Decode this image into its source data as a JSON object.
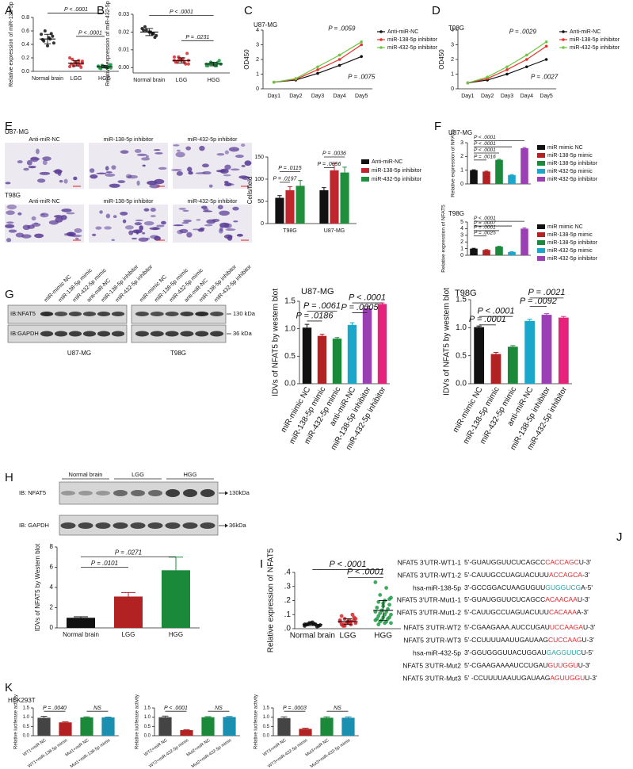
{
  "panel_labels": [
    "A",
    "B",
    "C",
    "D",
    "E",
    "F",
    "G",
    "H",
    "I",
    "J",
    "K"
  ],
  "E_images": {
    "rows": [
      "U87-MG",
      "T98G"
    ],
    "columns": [
      "Anti-miR-NC",
      "miR-138-5p inhibitor",
      "miR-432-5p inhibitor"
    ]
  },
  "G_blot": {
    "lanes": [
      "miR-mimic NC",
      "miR-138-5p mimic",
      "miR-432-5p mimic",
      "anti-miR-NC",
      "miR-138-5p inhibitor",
      "miR-432-5p inhibitor"
    ],
    "bands": [
      "IB:NFAT5",
      "IB:GAPDH"
    ],
    "sizes": [
      "130 kDa",
      "36 kDa"
    ],
    "cell_lines": [
      "U87-MG",
      "T98G"
    ]
  },
  "H_blot": {
    "groups": [
      "Normal brain",
      "LGG",
      "HGG"
    ],
    "bands": [
      "IB: NFAT5",
      "IB: GAPDH"
    ],
    "sizes": [
      "130kDa",
      "36kDa"
    ]
  },
  "K_title": "HEK293T",
  "J_sequences": [
    {
      "name": "NFAT5 3'UTR-WT1-1",
      "pre": "5'-GUAUGGUUCUCAGCC",
      "seed": "CACCAGC",
      "post": "U-3'",
      "seed_color": "#e0262b"
    },
    {
      "name": "NFAT5 3'UTR-WT1-2",
      "pre": "5'-CAUUGCCUAGUACUUU",
      "seed": "ACCAGCA",
      "post": "-3'",
      "seed_color": "#e0262b"
    },
    {
      "name": "hsa-miR-138-5p",
      "pre": "3'-GCCGGACUAAGUGUU",
      "seed": "GUGGUCG",
      "post": "A-5'",
      "seed_color": "#1fa3a8"
    },
    {
      "name": "NFAT5 3'UTR-Mut1-1",
      "pre": "5'-GUAUGGUUCUCAGCC",
      "seed": "ACAACAA",
      "post": "U-3'",
      "seed_color": "#e0262b"
    },
    {
      "name": "NFAT5 3'UTR-Mut1-2",
      "pre": "5'-CAUUGCCUAGUACUUU",
      "seed": "CACAAA",
      "post": "A-3'",
      "seed_color": "#e0262b"
    },
    {
      "name": "NFAT5 3'UTR-WT2",
      "pre": "5'-CGAAGAAA.AUCCUGAU",
      "seed": "UCCAAGA",
      "post": "U-3'",
      "seed_color": "#e0262b"
    },
    {
      "name": "NFAT5 3'UTR-WT3",
      "pre": "5'-CCUUUUAAUUGAUAAG",
      "seed": "CUCCAAG",
      "post": "U-3'",
      "seed_color": "#e0262b"
    },
    {
      "name": "hsa-miR-432-5p",
      "pre": "3'-GGUGGGUUACUGGAU",
      "seed": "GAGGUUC",
      "post": "U-5'",
      "seed_color": "#1fa3a8"
    },
    {
      "name": "NFAT5 3'UTR-Mut2",
      "pre": "5'-CGAAGAAAAUCCUGAU",
      "seed": "GUUGGU",
      "post": "U-3'",
      "seed_color": "#e0262b"
    },
    {
      "name": "NFAT5 3'UTR-Mut3",
      "pre": "5' -CCUUUUAAUUGAUAAG",
      "seed": "AGUUGGU",
      "post": "U-3'",
      "seed_color": "#e0262b"
    }
  ],
  "chart_data": [
    {
      "type": "scatter",
      "ylabel": "Relative expression of miR-138-5p",
      "categories": [
        "Normal brain",
        "LGG",
        "HGG"
      ],
      "colors": [
        "#111111",
        "#d7262a",
        "#1e9b45"
      ],
      "points": [
        [
          0.55,
          0.48,
          0.6,
          0.42,
          0.5,
          0.45,
          0.52,
          0.38,
          0.47,
          0.56
        ],
        [
          0.2,
          0.12,
          0.08,
          0.15,
          0.1,
          0.18,
          0.06,
          0.13,
          0.11,
          0.09,
          0.14,
          0.07,
          0.16,
          0.1,
          0.12
        ],
        [
          0.08,
          0.05,
          0.07,
          0.1,
          0.06,
          0.04,
          0.09,
          0.07,
          0.05,
          0.06,
          0.08,
          0.07,
          0.06,
          0.09,
          0.05
        ]
      ],
      "means": [
        0.48,
        0.12,
        0.07
      ],
      "sd": [
        0.07,
        0.04,
        0.02
      ],
      "ylim": [
        0,
        0.8
      ],
      "yticks": [
        {
          "value": 0,
          "label": "0.0"
        },
        0.2,
        0.4,
        0.6,
        0.8
      ],
      "annotations": [
        "P < .0001",
        "P < .0001"
      ]
    },
    {
      "type": "scatter",
      "ylabel": "Relative expression of miR-432-5p",
      "categories": [
        "Normal brain",
        "LGG",
        "HGG"
      ],
      "colors": [
        "#111111",
        "#d7262a",
        "#1e9b45"
      ],
      "points": [
        [
          0.022,
          0.019,
          0.021,
          0.018,
          0.02,
          0.023,
          0.017,
          0.02,
          0.021,
          0.019
        ],
        [
          0.006,
          0.003,
          0.004,
          0.002,
          0.005,
          0.003,
          0.008,
          0.004,
          0.003,
          0.002,
          0.005,
          0.004,
          0.003,
          0.006,
          0.004
        ],
        [
          0.002,
          0.001,
          0.003,
          0.002,
          0.001,
          0.002,
          0.004,
          0.002,
          0.001,
          0.003,
          0.002,
          0.001,
          0.002,
          0.003,
          0.002
        ]
      ],
      "means": [
        0.02,
        0.004,
        0.002
      ],
      "sd": [
        0.002,
        0.0015,
        0.001
      ],
      "ylim": [
        -0.003,
        0.03
      ],
      "yticks": [
        {
          "value": 0,
          "label": "0.00"
        },
        {
          "value": 0.01,
          "label": "0.01"
        },
        {
          "value": 0.02,
          "label": "0.02"
        },
        {
          "value": 0.03,
          "label": "0.03"
        }
      ],
      "annotations": [
        "P < .0001",
        "P = .0231"
      ]
    },
    {
      "type": "line",
      "title": "U87-MG",
      "ylabel": "OD450",
      "categories": [
        "Day1",
        "Day2",
        "Day3",
        "Day4",
        "Day5"
      ],
      "series": [
        {
          "name": "Anti-miR-NC",
          "color": "#111111",
          "values": [
            0.45,
            0.6,
            1.05,
            1.6,
            2.2
          ]
        },
        {
          "name": "miR-138-5p inhibitor",
          "color": "#e8322b",
          "values": [
            0.45,
            0.65,
            1.3,
            2.0,
            3.0
          ]
        },
        {
          "name": "miR-432-5p inhibitor",
          "color": "#6ec642",
          "values": [
            0.45,
            0.7,
            1.5,
            2.3,
            3.2
          ]
        }
      ],
      "ylim": [
        0,
        4
      ],
      "yticks": [
        0,
        1,
        2,
        3,
        4
      ],
      "annotations": [
        "P = .0059",
        "P = .0075"
      ],
      "annotation_colors": [
        "#e8322b",
        "#111111"
      ],
      "legend": "right"
    },
    {
      "type": "line",
      "title": "T98G",
      "ylabel": "OD450",
      "categories": [
        "Day1",
        "Day2",
        "Day3",
        "Day4",
        "Day5"
      ],
      "series": [
        {
          "name": "Anti-miR-NC",
          "color": "#111111",
          "values": [
            0.4,
            0.6,
            1.0,
            1.5,
            2.0
          ]
        },
        {
          "name": "miR-138-5p inhibitor",
          "color": "#e8322b",
          "values": [
            0.4,
            0.7,
            1.3,
            2.0,
            2.9
          ]
        },
        {
          "name": "miR-432-5p inhibitor",
          "color": "#6ec642",
          "values": [
            0.4,
            0.8,
            1.5,
            2.3,
            3.2
          ]
        }
      ],
      "ylim": [
        0,
        4
      ],
      "yticks": [
        0,
        1,
        2,
        3,
        4
      ],
      "annotations": [
        "P = .0029",
        "P = .0027"
      ],
      "annotation_colors": [
        "#e8322b",
        "#111111"
      ],
      "legend": "right"
    },
    {
      "type": "bar",
      "ylabel": "Cells/field",
      "categories": [
        "T98G",
        "U87-MG"
      ],
      "series": [
        {
          "name": "Anti-miR-NC",
          "color": "#111111",
          "values": [
            58,
            75
          ],
          "errors": [
            5,
            6
          ]
        },
        {
          "name": "miR-138-5p inhibitor",
          "color": "#c0262d",
          "values": [
            75,
            120
          ],
          "errors": [
            8,
            15
          ]
        },
        {
          "name": "miR-432-5p inhibitor",
          "color": "#1f8f3c",
          "values": [
            85,
            115
          ],
          "errors": [
            12,
            12
          ]
        }
      ],
      "ylim": [
        0,
        150
      ],
      "yticks": [
        0,
        50,
        100,
        150
      ],
      "annotations": [
        "P = .0115",
        "P = .0197",
        "P = .0036",
        "P = .0056"
      ],
      "legend": "right"
    },
    {
      "type": "bar",
      "title": "U87-MG",
      "ylabel": "Relative expression of NFAT5",
      "categories": [
        "miR mimic NC",
        "miR-138-5p mimic",
        "miR-138-5p inhibitor",
        "miR-432-5p mimic",
        "miR-432-5p inhibitor"
      ],
      "colors": [
        "#111111",
        "#b22222",
        "#1a8a3a",
        "#1aa7c9",
        "#9b3fb5"
      ],
      "values": [
        1.0,
        0.9,
        1.75,
        0.65,
        2.6
      ],
      "errors": [
        0.03,
        0.03,
        0.04,
        0.03,
        0.05
      ],
      "ylim": [
        0,
        3
      ],
      "yticks": [
        0,
        1,
        2,
        3
      ],
      "annotations": [
        "P < .0001",
        "P < .0001",
        "P < .0001",
        "P = .0016"
      ],
      "legend": "right"
    },
    {
      "type": "bar",
      "title": "T98G",
      "ylabel": "Relative expression of NFAT5",
      "categories": [
        "miR mimic NC",
        "miR-138-5p mimic",
        "miR-138-5p inhibitor",
        "miR-432-5p mimic",
        "miR-432-5p inhibitor"
      ],
      "colors": [
        "#111111",
        "#b22222",
        "#1a8a3a",
        "#1aa7c9",
        "#9b3fb5"
      ],
      "values": [
        1.0,
        0.8,
        1.3,
        0.5,
        4.0
      ],
      "errors": [
        0.05,
        0.05,
        0.05,
        0.04,
        0.1
      ],
      "ylim": [
        0,
        5
      ],
      "yticks": [
        0,
        1,
        2,
        3,
        4,
        5
      ],
      "annotations": [
        "P < .0001",
        "P = .0007",
        "P = .0001",
        "P = .0025"
      ],
      "legend": "right"
    },
    {
      "type": "bar",
      "title": "U87-MG",
      "ylabel": "IDVs of NFAT5 by western blot",
      "categories": [
        "miR-mimic NC",
        "miR-138-5p mimic",
        "miR-432-5p mimic",
        "anti-miR-NC",
        "miR-138-5p inhibitor",
        "miR-432-5p inhibitor"
      ],
      "colors": [
        "#111111",
        "#b22222",
        "#1a8a3a",
        "#1aa7c9",
        "#9b3fb5",
        "#e6237a"
      ],
      "values": [
        1.02,
        0.87,
        0.82,
        1.07,
        1.37,
        1.45
      ],
      "errors": [
        0.06,
        0.03,
        0.02,
        0.04,
        0.04,
        0.02
      ],
      "ylim": [
        0,
        1.5
      ],
      "yticks": [
        {
          "value": 0,
          "label": "0.0"
        },
        0.5,
        {
          "value": 1,
          "label": "1.0"
        },
        1.5
      ],
      "annotations": [
        "P = .0061",
        "P = .0186",
        "P < .0001",
        "P = .0005"
      ],
      "xtick_rotation": 60
    },
    {
      "type": "bar",
      "title": "T98G",
      "ylabel": "IDVs of NFAT5 by western blot",
      "categories": [
        "miR-mimic NC",
        "miR-138-5p mimic",
        "miR-432-5p mimic",
        "anti-miR-NC",
        "miR-138-5p inhibitor",
        "miR-432-5p inhibitor"
      ],
      "colors": [
        "#111111",
        "#b22222",
        "#1a8a3a",
        "#1aa7c9",
        "#9b3fb5",
        "#e6237a"
      ],
      "values": [
        1.01,
        0.53,
        0.66,
        1.12,
        1.23,
        1.18
      ],
      "errors": [
        0.02,
        0.03,
        0.02,
        0.03,
        0.02,
        0.02
      ],
      "ylim": [
        0,
        1.5
      ],
      "yticks": [
        {
          "value": 0,
          "label": "0.0"
        },
        0.5,
        {
          "value": 1,
          "label": "1.0"
        },
        1.5
      ],
      "annotations": [
        "P < .0001",
        "P = .0001",
        "P = .0021",
        "P = .0092"
      ],
      "xtick_rotation": 60
    },
    {
      "type": "bar",
      "ylabel": "IDVs of NFAT5 by Western blot",
      "categories": [
        "Normal brain",
        "LGG",
        "HGG"
      ],
      "colors": [
        "#111111",
        "#b22222",
        "#1a8a3a"
      ],
      "values": [
        1.0,
        3.1,
        5.7
      ],
      "errors": [
        0.1,
        0.4,
        1.3
      ],
      "ylim": [
        0,
        8
      ],
      "yticks": [
        0,
        2,
        4,
        6,
        8
      ],
      "annotations": [
        "P = .0101",
        "P = .0271"
      ]
    },
    {
      "type": "scatter",
      "ylabel": "Relative expression of NFAT5",
      "categories": [
        "Normal brain",
        "LGG",
        "HGG"
      ],
      "colors": [
        "#111111",
        "#d7262a",
        "#1e9b45"
      ],
      "points": [
        [
          0.02,
          0.03,
          0.04,
          0.025,
          0.035,
          0.03,
          0.02,
          0.045,
          0.03,
          0.015,
          0.04,
          0.03
        ],
        [
          0.05,
          0.03,
          0.07,
          0.04,
          0.06,
          0.02,
          0.08,
          0.05,
          0.03,
          0.1,
          0.04,
          0.06,
          0.05,
          0.02,
          0.07,
          0.04,
          0.03,
          0.06,
          0.05,
          0.09
        ],
        [
          0.33,
          0.29,
          0.24,
          0.22,
          0.2,
          0.19,
          0.17,
          0.16,
          0.15,
          0.14,
          0.13,
          0.12,
          0.12,
          0.11,
          0.1,
          0.1,
          0.09,
          0.08,
          0.08,
          0.07,
          0.07,
          0.06,
          0.06,
          0.05,
          0.05,
          0.04,
          0.04,
          0.03,
          0.21,
          0.18
        ]
      ],
      "means": [
        0.03,
        0.05,
        0.13
      ],
      "sd": [
        0.008,
        0.02,
        0.07
      ],
      "ylim": [
        0,
        0.4
      ],
      "yticks": [
        {
          "value": 0,
          "label": ".0"
        },
        {
          "value": 0.1,
          "label": ".1"
        },
        {
          "value": 0.2,
          "label": ".2"
        },
        {
          "value": 0.3,
          "label": ".3"
        },
        {
          "value": 0.4,
          "label": ".4"
        }
      ],
      "annotations": [
        "P < .0001",
        "P < .0001"
      ]
    },
    {
      "type": "bar",
      "ylabel": "Relative luciferase activity",
      "categories": [
        "WT1+miR NC",
        "WT1+miR-138-5p mimic",
        "Mut1+miR NC",
        "Mut1+miR-138-5p mimic"
      ],
      "colors": [
        "#444444",
        "#b22222",
        "#1a8a3a",
        "#1a8fb0"
      ],
      "values": [
        0.97,
        0.72,
        0.99,
        0.99
      ],
      "errors": [
        0.08,
        0.03,
        0.03,
        0.02
      ],
      "ylim": [
        0,
        1.5
      ],
      "yticks": [
        {
          "value": 0,
          "label": "0.0"
        },
        0.5,
        {
          "value": 1,
          "label": "1.0"
        },
        1.5
      ],
      "annotations": [
        "P = .0040",
        "NS"
      ],
      "xtick_rotation": 35
    },
    {
      "type": "bar",
      "ylabel": "Relative luciferase activity",
      "categories": [
        "WT2+miR NC",
        "WT2+miR-432-5p mimic",
        "Mut2+miR NC",
        "Mut2+miR-432-5p mimic"
      ],
      "colors": [
        "#444444",
        "#b22222",
        "#1a8a3a",
        "#1a8fb0"
      ],
      "values": [
        1.0,
        0.3,
        1.0,
        1.01
      ],
      "errors": [
        0.06,
        0.02,
        0.03,
        0.03
      ],
      "ylim": [
        0,
        1.5
      ],
      "yticks": [
        {
          "value": 0,
          "label": "0.0"
        },
        0.5,
        {
          "value": 1,
          "label": "1.0"
        },
        1.5
      ],
      "annotations": [
        "P < .0001",
        "NS"
      ],
      "xtick_rotation": 35
    },
    {
      "type": "bar",
      "ylabel": "Relative luciferase activity",
      "categories": [
        "WT3+miR NC",
        "WT3+miR-432-5p mimic",
        "Mut3+miR NC",
        "Mut3+miR-432-5p mimic"
      ],
      "colors": [
        "#444444",
        "#b22222",
        "#1a8a3a",
        "#1a8fb0"
      ],
      "values": [
        0.95,
        0.37,
        0.97,
        0.97
      ],
      "errors": [
        0.07,
        0.04,
        0.05,
        0.05
      ],
      "ylim": [
        0,
        1.5
      ],
      "yticks": [
        {
          "value": 0,
          "label": "0.0"
        },
        0.5,
        {
          "value": 1,
          "label": "1.0"
        },
        1.5
      ],
      "annotations": [
        "P = .0003",
        "NS"
      ],
      "xtick_rotation": 35
    }
  ]
}
